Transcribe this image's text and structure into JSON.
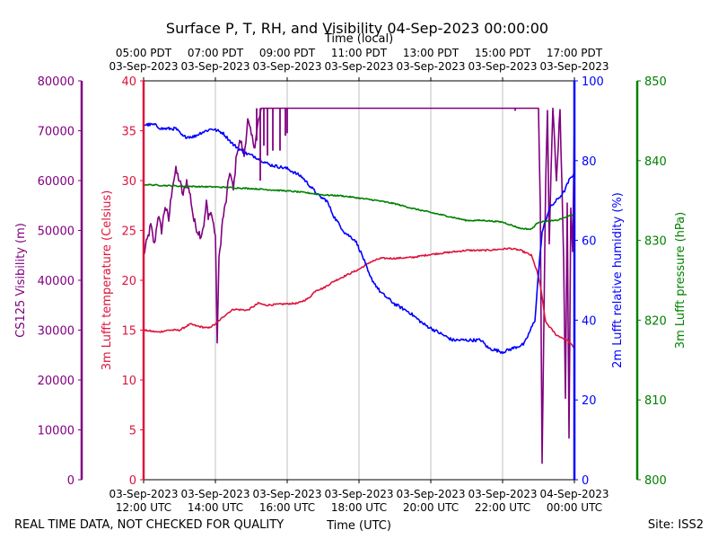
{
  "chart_data": {
    "type": "line",
    "title": "Surface P, T, RH, and Visibility 04-Sep-2023 00:00:00",
    "x_top_label": "Time (local)",
    "x_bottom_label": "Time (UTC)",
    "footer_left": "REAL TIME DATA, NOT CHECKED FOR QUALITY",
    "footer_right": "Site: ISS2",
    "x_range_hours": [
      0,
      12
    ],
    "x_grid_hours": [
      2,
      4,
      6,
      8,
      10
    ],
    "bottom_ticks": [
      {
        "hour": 0,
        "date": "03-Sep-2023",
        "time": "12:00 UTC"
      },
      {
        "hour": 2,
        "date": "03-Sep-2023",
        "time": "14:00 UTC"
      },
      {
        "hour": 4,
        "date": "03-Sep-2023",
        "time": "16:00 UTC"
      },
      {
        "hour": 6,
        "date": "03-Sep-2023",
        "time": "18:00 UTC"
      },
      {
        "hour": 8,
        "date": "03-Sep-2023",
        "time": "20:00 UTC"
      },
      {
        "hour": 10,
        "date": "03-Sep-2023",
        "time": "22:00 UTC"
      },
      {
        "hour": 12,
        "date": "04-Sep-2023",
        "time": "00:00 UTC"
      }
    ],
    "top_ticks": [
      {
        "hour": 0,
        "time": "05:00 PDT",
        "date": "03-Sep-2023"
      },
      {
        "hour": 2,
        "time": "07:00 PDT",
        "date": "03-Sep-2023"
      },
      {
        "hour": 4,
        "time": "09:00 PDT",
        "date": "03-Sep-2023"
      },
      {
        "hour": 6,
        "time": "11:00 PDT",
        "date": "03-Sep-2023"
      },
      {
        "hour": 8,
        "time": "13:00 PDT",
        "date": "03-Sep-2023"
      },
      {
        "hour": 10,
        "time": "15:00 PDT",
        "date": "03-Sep-2023"
      },
      {
        "hour": 12,
        "time": "17:00 PDT",
        "date": "03-Sep-2023"
      }
    ],
    "axes": {
      "visibility": {
        "label": "CS125 Visibility (m)",
        "color": "#800080",
        "range": [
          0,
          80000
        ],
        "ticks": [
          "0",
          "10000",
          "20000",
          "30000",
          "40000",
          "50000",
          "60000",
          "70000",
          "80000"
        ]
      },
      "temperature": {
        "label": "3m Lufft temperature (Celsius)",
        "color": "#dc143c",
        "range": [
          0,
          40
        ],
        "ticks": [
          "0",
          "5",
          "10",
          "15",
          "20",
          "25",
          "30",
          "35",
          "40"
        ]
      },
      "humidity": {
        "label": "2m Lufft relative humidity (%)",
        "color": "#0000ff",
        "range": [
          0,
          100
        ],
        "ticks": [
          "0",
          "20",
          "40",
          "60",
          "80",
          "100"
        ]
      },
      "pressure": {
        "label": "3m Lufft pressure (hPa)",
        "color": "#008000",
        "range": [
          800,
          850
        ],
        "ticks": [
          "800",
          "810",
          "820",
          "830",
          "840",
          "850"
        ]
      }
    },
    "series": [
      {
        "name": "Temperature",
        "axis": "temperature",
        "color": "#dc143c",
        "noise": 0.08,
        "points": [
          [
            0,
            15.0
          ],
          [
            0.4,
            14.8
          ],
          [
            0.7,
            15.0
          ],
          [
            1.0,
            15.0
          ],
          [
            1.3,
            15.6
          ],
          [
            1.5,
            15.4
          ],
          [
            1.8,
            15.2
          ],
          [
            2.0,
            15.6
          ],
          [
            2.3,
            16.6
          ],
          [
            2.5,
            17.1
          ],
          [
            2.9,
            17.0
          ],
          [
            3.2,
            17.7
          ],
          [
            3.4,
            17.5
          ],
          [
            3.8,
            17.6
          ],
          [
            4.3,
            17.7
          ],
          [
            4.6,
            18.2
          ],
          [
            4.8,
            19.0
          ],
          [
            5.0,
            19.2
          ],
          [
            5.3,
            19.9
          ],
          [
            5.7,
            20.6
          ],
          [
            6.0,
            21.1
          ],
          [
            6.3,
            21.8
          ],
          [
            6.6,
            22.2
          ],
          [
            7.0,
            22.2
          ],
          [
            7.5,
            22.3
          ],
          [
            8.0,
            22.6
          ],
          [
            8.5,
            22.8
          ],
          [
            9.0,
            23.0
          ],
          [
            9.5,
            23.0
          ],
          [
            9.9,
            23.1
          ],
          [
            10.2,
            23.2
          ],
          [
            10.5,
            23.0
          ],
          [
            10.8,
            22.5
          ],
          [
            10.95,
            21.0
          ],
          [
            11.05,
            19.5
          ],
          [
            11.2,
            15.8
          ],
          [
            11.5,
            14.5
          ],
          [
            11.8,
            14.0
          ],
          [
            12.0,
            13.2
          ]
        ]
      },
      {
        "name": "Relative Humidity",
        "axis": "humidity",
        "color": "#0000ff",
        "noise": 0.4,
        "points": [
          [
            0,
            89
          ],
          [
            0.3,
            89
          ],
          [
            0.5,
            88
          ],
          [
            0.9,
            88
          ],
          [
            1.1,
            86
          ],
          [
            1.4,
            86
          ],
          [
            1.6,
            87
          ],
          [
            1.9,
            88
          ],
          [
            2.2,
            87
          ],
          [
            2.5,
            84
          ],
          [
            2.8,
            82
          ],
          [
            3.1,
            81
          ],
          [
            3.5,
            79
          ],
          [
            4.0,
            78
          ],
          [
            4.4,
            76
          ],
          [
            4.7,
            73
          ],
          [
            4.9,
            71
          ],
          [
            5.1,
            70
          ],
          [
            5.3,
            66
          ],
          [
            5.6,
            62
          ],
          [
            5.9,
            60
          ],
          [
            6.1,
            56
          ],
          [
            6.3,
            51
          ],
          [
            6.6,
            47
          ],
          [
            7.0,
            44
          ],
          [
            7.4,
            42
          ],
          [
            7.8,
            39
          ],
          [
            8.2,
            37
          ],
          [
            8.6,
            35
          ],
          [
            9.0,
            35
          ],
          [
            9.4,
            35
          ],
          [
            9.6,
            33
          ],
          [
            10.0,
            32
          ],
          [
            10.3,
            33
          ],
          [
            10.6,
            34
          ],
          [
            10.9,
            40
          ],
          [
            11.0,
            52
          ],
          [
            11.1,
            62
          ],
          [
            11.3,
            68
          ],
          [
            11.5,
            70
          ],
          [
            11.7,
            72
          ],
          [
            11.85,
            75
          ],
          [
            12.0,
            77
          ]
        ]
      },
      {
        "name": "Pressure",
        "axis": "pressure",
        "color": "#008000",
        "noise": 0.08,
        "points": [
          [
            0,
            837.0
          ],
          [
            1.0,
            836.8
          ],
          [
            2.0,
            836.7
          ],
          [
            3.0,
            836.5
          ],
          [
            4.0,
            836.2
          ],
          [
            4.5,
            836.0
          ],
          [
            5.0,
            835.7
          ],
          [
            5.5,
            835.6
          ],
          [
            6.0,
            835.3
          ],
          [
            6.5,
            835.0
          ],
          [
            7.0,
            834.6
          ],
          [
            7.5,
            834.0
          ],
          [
            8.0,
            833.5
          ],
          [
            8.5,
            833.0
          ],
          [
            9.0,
            832.5
          ],
          [
            9.5,
            832.5
          ],
          [
            10.0,
            832.3
          ],
          [
            10.5,
            831.5
          ],
          [
            10.8,
            831.4
          ],
          [
            11.0,
            832.3
          ],
          [
            11.5,
            832.5
          ],
          [
            12.0,
            833.3
          ]
        ]
      },
      {
        "name": "Visibility",
        "axis": "visibility",
        "color": "#800080",
        "noise": 900,
        "points": [
          [
            0,
            45000
          ],
          [
            0.1,
            48000
          ],
          [
            0.2,
            51000
          ],
          [
            0.3,
            47000
          ],
          [
            0.4,
            53000
          ],
          [
            0.5,
            50000
          ],
          [
            0.6,
            55000
          ],
          [
            0.7,
            52000
          ],
          [
            0.8,
            59000
          ],
          [
            0.9,
            62000
          ],
          [
            1.0,
            60000
          ],
          [
            1.1,
            57000
          ],
          [
            1.2,
            60000
          ],
          [
            1.3,
            57000
          ],
          [
            1.4,
            52000
          ],
          [
            1.5,
            50000
          ],
          [
            1.6,
            49000
          ],
          [
            1.7,
            52000
          ],
          [
            1.75,
            56000
          ],
          [
            1.8,
            52000
          ],
          [
            1.85,
            54000
          ],
          [
            1.9,
            53000
          ],
          [
            2.0,
            49000
          ],
          [
            2.05,
            28000
          ],
          [
            2.1,
            44000
          ],
          [
            2.2,
            52000
          ],
          [
            2.3,
            56000
          ],
          [
            2.4,
            62000
          ],
          [
            2.5,
            58000
          ],
          [
            2.6,
            66000
          ],
          [
            2.7,
            68000
          ],
          [
            2.8,
            65000
          ],
          [
            2.9,
            72000
          ],
          [
            3.0,
            69000
          ],
          [
            3.1,
            67000
          ],
          [
            3.2,
            72000
          ],
          [
            3.3,
            74500
          ],
          [
            3.4,
            74500
          ],
          [
            4.9,
            74500
          ],
          [
            5.0,
            74500
          ],
          [
            8.0,
            74500
          ],
          [
            10.3,
            74500
          ],
          [
            11.0,
            74500
          ],
          [
            11.05,
            55000
          ],
          [
            11.1,
            3000
          ],
          [
            11.2,
            60000
          ],
          [
            11.25,
            74500
          ],
          [
            11.3,
            48000
          ],
          [
            11.4,
            74500
          ],
          [
            11.5,
            60000
          ],
          [
            11.6,
            74500
          ],
          [
            11.7,
            45000
          ],
          [
            11.75,
            17000
          ],
          [
            11.8,
            55000
          ],
          [
            11.85,
            8000
          ],
          [
            11.9,
            55000
          ],
          [
            11.95,
            45000
          ],
          [
            12.0,
            72000
          ]
        ]
      }
    ],
    "spikes": [
      {
        "axis": "visibility",
        "color": "#800080",
        "points": [
          [
            3.15,
            74500
          ],
          [
            3.15,
            68000
          ],
          [
            3.6,
            74500
          ],
          [
            3.6,
            66000
          ],
          [
            3.8,
            74500
          ],
          [
            3.8,
            66000
          ],
          [
            3.95,
            74500
          ],
          [
            3.95,
            69000
          ],
          [
            4.0,
            74500
          ],
          [
            4.0,
            69500
          ],
          [
            3.25,
            74500
          ],
          [
            3.25,
            60000
          ],
          [
            3.35,
            74500
          ],
          [
            3.35,
            67000
          ],
          [
            3.45,
            74500
          ],
          [
            3.45,
            65000
          ],
          [
            10.35,
            74500
          ],
          [
            10.35,
            74000
          ]
        ]
      }
    ]
  }
}
